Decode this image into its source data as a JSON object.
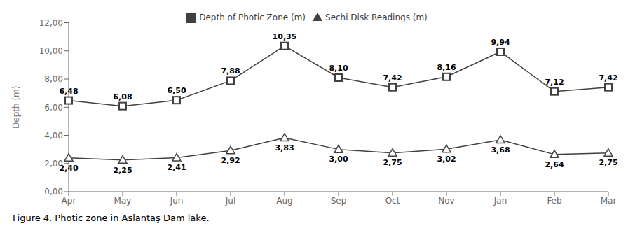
{
  "chart_data": {
    "type": "line",
    "caption": "Figure 4. Photic zone in Aslantaş Dam lake.",
    "ylabel": "Depth (m)",
    "categories": [
      "Apr",
      "May",
      "Jun",
      "Jul",
      "Aug",
      "Sep",
      "Oct",
      "Nov",
      "Jan",
      "Feb",
      "Mar"
    ],
    "series": [
      {
        "name": "Sechi Disk Readings (m)",
        "color": "#404040",
        "marker": "triangle",
        "values": [
          2.4,
          2.25,
          2.41,
          2.92,
          3.83,
          3.0,
          2.75,
          3.02,
          3.68,
          2.64,
          2.75
        ],
        "value_labels": [
          "2,40",
          "2,25",
          "2,41",
          "2,92",
          "3,83",
          "3,00",
          "2,75",
          "3,02",
          "3,68",
          "2,64",
          "2,75"
        ]
      },
      {
        "name": "Depth of Photic Zone (m)",
        "color": "#404040",
        "marker": "square",
        "values": [
          6.48,
          6.08,
          6.5,
          7.88,
          10.35,
          8.1,
          7.42,
          8.16,
          9.94,
          7.12,
          7.42
        ],
        "value_labels": [
          "6,48",
          "6,08",
          "6,50",
          "7,88",
          "10,35",
          "8,10",
          "7,42",
          "8,16",
          "9,94",
          "7,12",
          "7,42"
        ]
      }
    ],
    "ylim": [
      0,
      12
    ],
    "yticks": [
      {
        "value": 0,
        "label": "0,00"
      },
      {
        "value": 2,
        "label": "2,00"
      },
      {
        "value": 4,
        "label": "4,00"
      },
      {
        "value": 6,
        "label": "6,00"
      },
      {
        "value": 8,
        "label": "8,00"
      },
      {
        "value": 10,
        "label": "10,00"
      },
      {
        "value": 12,
        "label": "12,00"
      }
    ],
    "grid": false,
    "legend": "top",
    "data_labels": true
  }
}
